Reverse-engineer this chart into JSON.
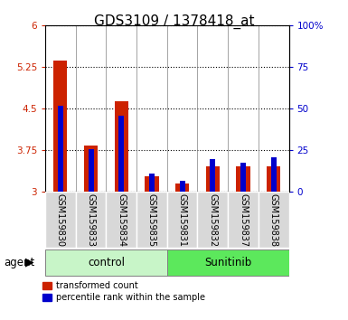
{
  "title": "GDS3109 / 1378418_at",
  "categories": [
    "GSM159830",
    "GSM159833",
    "GSM159834",
    "GSM159835",
    "GSM159831",
    "GSM159832",
    "GSM159837",
    "GSM159838"
  ],
  "red_values": [
    5.37,
    3.83,
    4.63,
    3.28,
    3.15,
    3.47,
    3.47,
    3.47
  ],
  "blue_values": [
    4.55,
    3.77,
    4.38,
    3.33,
    3.2,
    3.6,
    3.52,
    3.62
  ],
  "ylim": [
    3.0,
    6.0
  ],
  "y2lim": [
    0,
    100
  ],
  "yticks": [
    3.0,
    3.75,
    4.5,
    5.25,
    6.0
  ],
  "ytick_labels": [
    "3",
    "3.75",
    "4.5",
    "5.25",
    "6"
  ],
  "y2ticks": [
    0,
    25,
    50,
    75,
    100
  ],
  "y2tick_labels": [
    "0",
    "25",
    "50",
    "75",
    "100%"
  ],
  "groups": [
    {
      "label": "control",
      "indices": [
        0,
        1,
        2,
        3
      ],
      "color": "#c8f5c8"
    },
    {
      "label": "Sunitinib",
      "indices": [
        4,
        5,
        6,
        7
      ],
      "color": "#5ce85c"
    }
  ],
  "agent_label": "agent",
  "red_color": "#cc2200",
  "blue_color": "#0000cc",
  "plot_bg": "#ffffff",
  "label_bg": "#d8d8d8",
  "red_legend": "transformed count",
  "blue_legend": "percentile rank within the sample",
  "title_fontsize": 11,
  "tick_fontsize": 7.5,
  "label_fontsize": 8.5,
  "cat_fontsize": 7
}
